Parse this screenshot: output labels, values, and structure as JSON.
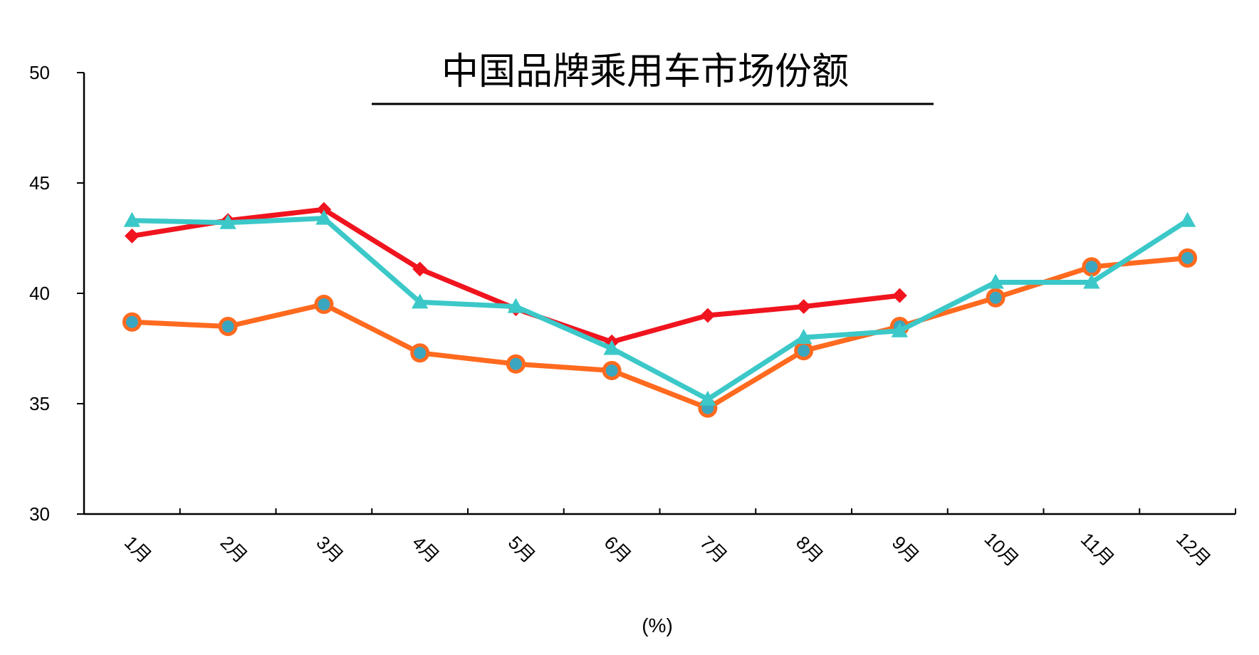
{
  "chart_data": {
    "type": "line",
    "title": "中国品牌乘用车市场份额",
    "xlabel": "(%)",
    "ylabel": "",
    "ylim": [
      30,
      50
    ],
    "yticks": [
      "30",
      "35",
      "40",
      "45",
      "50"
    ],
    "categories": [
      "1月",
      "2月",
      "3月",
      "4月",
      "5月",
      "6月",
      "7月",
      "8月",
      "9月",
      "10月",
      "11月",
      "12月"
    ],
    "grid": false,
    "legend": "none",
    "series": [
      {
        "color": "#f0141e",
        "marker": "diamond",
        "values": [
          42.6,
          43.3,
          43.8,
          41.1,
          39.3,
          37.8,
          39.0,
          39.4,
          39.9,
          null,
          null,
          null
        ]
      },
      {
        "color": "#ff6a1f",
        "marker": "circle",
        "values": [
          38.7,
          38.5,
          39.5,
          37.3,
          36.8,
          36.5,
          34.8,
          37.4,
          38.5,
          39.8,
          41.2,
          41.6
        ]
      },
      {
        "color": "#3cc8c8",
        "marker": "triangle",
        "values": [
          43.3,
          43.2,
          43.4,
          39.6,
          39.4,
          37.5,
          35.2,
          38.0,
          38.3,
          40.5,
          40.5,
          43.3
        ]
      }
    ]
  }
}
